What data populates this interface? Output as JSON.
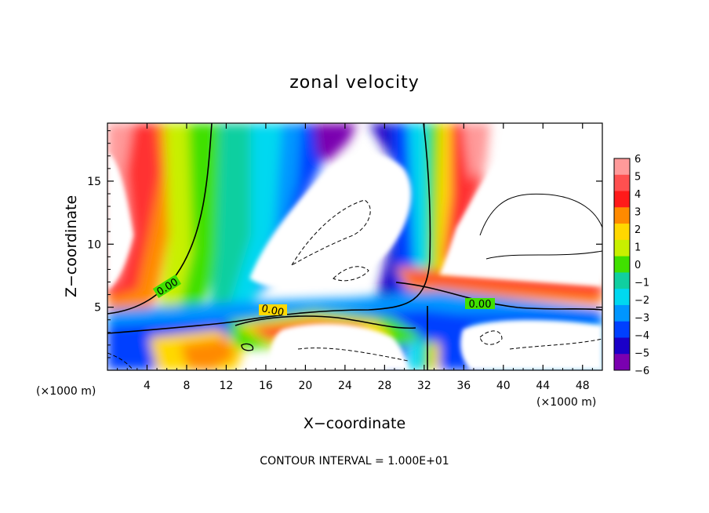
{
  "chart_data": {
    "type": "contour",
    "title": "zonal velocity",
    "xlabel": "X−coordinate",
    "ylabel": "Z−coordinate",
    "x_unit_left": "(×1000 m)",
    "x_unit_right": "(×1000 m)",
    "footer": "CONTOUR INTERVAL = 1.000E+01",
    "xlim": [
      0,
      50
    ],
    "ylim": [
      0,
      19.6
    ],
    "xticks": [
      4,
      8,
      12,
      16,
      20,
      24,
      28,
      32,
      36,
      40,
      44,
      48
    ],
    "xtick_labels": [
      "4",
      "8",
      "12",
      "16",
      "20",
      "24",
      "28",
      "32",
      "36",
      "40",
      "44",
      "48"
    ],
    "yticks": [
      5,
      10,
      15
    ],
    "ytick_labels": [
      "5",
      "10",
      "15"
    ],
    "colorbar": {
      "levels": [
        6,
        5,
        4,
        3,
        2,
        1,
        0,
        -1,
        -2,
        -3,
        -4,
        -5,
        -6
      ],
      "labels": [
        "6",
        "5",
        "4",
        "3",
        "2",
        "1",
        "0",
        "−1",
        "−2",
        "−3",
        "−4",
        "−5",
        "−6"
      ],
      "colors": [
        "#ff9a9a",
        "#ff5050",
        "#ff1a1a",
        "#ff8a00",
        "#ffd800",
        "#c8f000",
        "#40e000",
        "#10cfa0",
        "#00d8f0",
        "#0096ff",
        "#0040ff",
        "#1a00c8",
        "#7a00b0"
      ]
    },
    "contour_labels": [
      "0.00",
      "0.00",
      "0.00"
    ]
  }
}
